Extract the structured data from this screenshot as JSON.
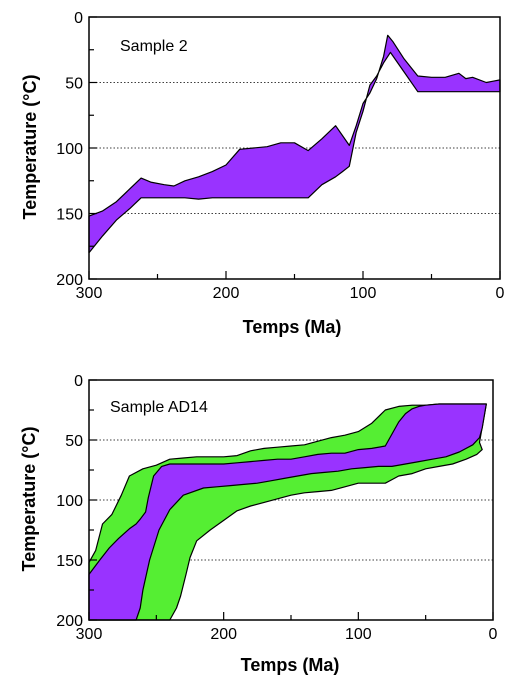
{
  "chart_data": [
    {
      "type": "area",
      "annotation": "Sample 2",
      "xlabel": "Temps (Ma)",
      "ylabel": "Temperature (°C)",
      "xlim": [
        300,
        0
      ],
      "ylim": [
        200,
        0
      ],
      "x_ticks": [
        300,
        200,
        100,
        0
      ],
      "y_ticks": [
        0,
        50,
        100,
        150,
        200
      ],
      "dotted_gridlines_y": [
        50,
        100,
        150
      ],
      "colors": {
        "envelope": "#9933ff"
      },
      "series": [
        {
          "role": "envelope",
          "color": "#9933ff",
          "upper": [
            [
              300,
              152
            ],
            [
              290,
              148
            ],
            [
              280,
              141
            ],
            [
              270,
              131
            ],
            [
              262,
              123
            ],
            [
              255,
              126
            ],
            [
              245,
              128
            ],
            [
              238,
              129
            ],
            [
              230,
              125
            ],
            [
              220,
              122
            ],
            [
              210,
              118
            ],
            [
              200,
              113
            ],
            [
              190,
              101
            ],
            [
              180,
              100
            ],
            [
              170,
              99
            ],
            [
              160,
              96
            ],
            [
              150,
              96
            ],
            [
              140,
              102
            ],
            [
              130,
              93
            ],
            [
              120,
              83
            ],
            [
              110,
              98
            ],
            [
              105,
              83
            ],
            [
              100,
              66
            ],
            [
              95,
              58
            ],
            [
              90,
              47
            ],
            [
              85,
              30
            ],
            [
              82,
              14
            ],
            [
              78,
              19
            ],
            [
              70,
              32
            ],
            [
              60,
              45
            ],
            [
              50,
              46
            ],
            [
              40,
              46
            ],
            [
              30,
              43
            ],
            [
              25,
              47
            ],
            [
              20,
              46
            ],
            [
              10,
              50
            ],
            [
              5,
              49
            ],
            [
              0,
              48
            ]
          ],
          "lower": [
            [
              0,
              57
            ],
            [
              10,
              57
            ],
            [
              20,
              57
            ],
            [
              30,
              57
            ],
            [
              40,
              57
            ],
            [
              50,
              57
            ],
            [
              60,
              57
            ],
            [
              70,
              42
            ],
            [
              80,
              27
            ],
            [
              85,
              35
            ],
            [
              90,
              45
            ],
            [
              95,
              52
            ],
            [
              100,
              72
            ],
            [
              105,
              88
            ],
            [
              110,
              114
            ],
            [
              115,
              118
            ],
            [
              120,
              122
            ],
            [
              130,
              128
            ],
            [
              140,
              138
            ],
            [
              150,
              138
            ],
            [
              160,
              138
            ],
            [
              170,
              138
            ],
            [
              180,
              138
            ],
            [
              190,
              138
            ],
            [
              200,
              138
            ],
            [
              210,
              138
            ],
            [
              220,
              139
            ],
            [
              230,
              138
            ],
            [
              240,
              138
            ],
            [
              250,
              138
            ],
            [
              262,
              138
            ],
            [
              270,
              146
            ],
            [
              280,
              155
            ],
            [
              290,
              167
            ],
            [
              300,
              180
            ]
          ]
        }
      ]
    },
    {
      "type": "area",
      "annotation": "Sample AD14",
      "xlabel": "Temps (Ma)",
      "ylabel": "Temperature (°C)",
      "xlim": [
        300,
        0
      ],
      "ylim": [
        200,
        0
      ],
      "x_ticks": [
        300,
        200,
        100,
        0
      ],
      "y_ticks": [
        0,
        50,
        100,
        150,
        200
      ],
      "dotted_gridlines_y": [
        50,
        100,
        150
      ],
      "colors": {
        "outer_envelope": "#55ee33",
        "inner_envelope": "#9933ff"
      },
      "series": [
        {
          "role": "outer_envelope",
          "color": "#55ee33",
          "upper": [
            [
              300,
              152
            ],
            [
              295,
              142
            ],
            [
              290,
              120
            ],
            [
              283,
              112
            ],
            [
              276,
              96
            ],
            [
              270,
              80
            ],
            [
              260,
              74
            ],
            [
              250,
              71
            ],
            [
              240,
              66
            ],
            [
              230,
              65
            ],
            [
              220,
              64
            ],
            [
              210,
              64
            ],
            [
              200,
              64
            ],
            [
              190,
              63
            ],
            [
              180,
              59
            ],
            [
              170,
              57
            ],
            [
              160,
              56
            ],
            [
              150,
              55
            ],
            [
              140,
              54
            ],
            [
              130,
              51
            ],
            [
              120,
              48
            ],
            [
              110,
              46
            ],
            [
              100,
              43
            ],
            [
              90,
              36
            ],
            [
              80,
              25
            ],
            [
              70,
              22
            ],
            [
              60,
              21
            ],
            [
              50,
              21
            ],
            [
              40,
              20
            ],
            [
              30,
              20
            ],
            [
              20,
              20
            ],
            [
              10,
              20
            ],
            [
              5,
              20
            ]
          ],
          "lower": [
            [
              5,
              20
            ],
            [
              10,
              52
            ],
            [
              8,
              58
            ],
            [
              12,
              62
            ],
            [
              20,
              66
            ],
            [
              30,
              70
            ],
            [
              40,
              72
            ],
            [
              50,
              74
            ],
            [
              60,
              78
            ],
            [
              70,
              80
            ],
            [
              75,
              83
            ],
            [
              80,
              86
            ],
            [
              90,
              86
            ],
            [
              100,
              86
            ],
            [
              110,
              89
            ],
            [
              120,
              92
            ],
            [
              130,
              93
            ],
            [
              140,
              94
            ],
            [
              150,
              96
            ],
            [
              160,
              99
            ],
            [
              170,
              102
            ],
            [
              180,
              105
            ],
            [
              190,
              109
            ],
            [
              200,
              117
            ],
            [
              210,
              125
            ],
            [
              220,
              134
            ],
            [
              225,
              148
            ],
            [
              228,
              162
            ],
            [
              232,
              180
            ],
            [
              235,
              190
            ],
            [
              240,
              200
            ],
            [
              250,
              200
            ],
            [
              260,
              200
            ],
            [
              270,
              200
            ],
            [
              280,
              200
            ],
            [
              290,
              200
            ],
            [
              300,
              200
            ]
          ]
        },
        {
          "role": "inner_envelope",
          "color": "#9933ff",
          "upper": [
            [
              300,
              162
            ],
            [
              292,
              150
            ],
            [
              285,
              140
            ],
            [
              278,
              132
            ],
            [
              270,
              124
            ],
            [
              265,
              120
            ],
            [
              262,
              116
            ],
            [
              258,
              110
            ],
            [
              256,
              98
            ],
            [
              252,
              80
            ],
            [
              246,
              72
            ],
            [
              240,
              70
            ],
            [
              230,
              70
            ],
            [
              220,
              70
            ],
            [
              210,
              70
            ],
            [
              200,
              70
            ],
            [
              190,
              69
            ],
            [
              180,
              68
            ],
            [
              170,
              67
            ],
            [
              160,
              66
            ],
            [
              150,
              66
            ],
            [
              140,
              64
            ],
            [
              130,
              62
            ],
            [
              120,
              61
            ],
            [
              110,
              61
            ],
            [
              100,
              58
            ],
            [
              90,
              57
            ],
            [
              80,
              55
            ],
            [
              75,
              45
            ],
            [
              70,
              35
            ],
            [
              65,
              28
            ],
            [
              60,
              24
            ],
            [
              55,
              22
            ],
            [
              50,
              21
            ],
            [
              40,
              20
            ],
            [
              30,
              20
            ],
            [
              20,
              20
            ],
            [
              10,
              20
            ],
            [
              5,
              20
            ]
          ],
          "lower": [
            [
              5,
              20
            ],
            [
              8,
              40
            ],
            [
              10,
              48
            ],
            [
              15,
              54
            ],
            [
              25,
              60
            ],
            [
              35,
              64
            ],
            [
              45,
              66
            ],
            [
              55,
              68
            ],
            [
              65,
              70
            ],
            [
              75,
              72
            ],
            [
              85,
              72
            ],
            [
              95,
              73
            ],
            [
              105,
              74
            ],
            [
              115,
              76
            ],
            [
              125,
              77
            ],
            [
              135,
              78
            ],
            [
              145,
              80
            ],
            [
              155,
              82
            ],
            [
              165,
              84
            ],
            [
              175,
              86
            ],
            [
              185,
              87
            ],
            [
              195,
              88
            ],
            [
              205,
              89
            ],
            [
              215,
              90
            ],
            [
              230,
              96
            ],
            [
              240,
              108
            ],
            [
              248,
              125
            ],
            [
              255,
              150
            ],
            [
              260,
              175
            ],
            [
              262,
              190
            ],
            [
              265,
              200
            ],
            [
              270,
              200
            ],
            [
              280,
              200
            ],
            [
              290,
              200
            ],
            [
              300,
              200
            ]
          ]
        }
      ]
    }
  ]
}
